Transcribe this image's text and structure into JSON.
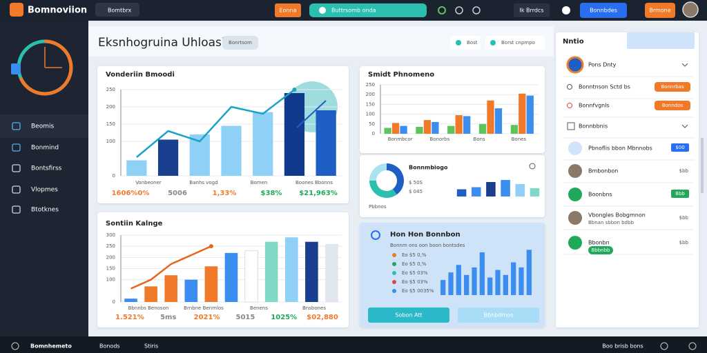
{
  "topbar": {
    "brand": "Bomnoviion",
    "search": "Bomtbrx",
    "button_1": "Eonna",
    "pill": "Buttrsomb onda",
    "link": "Ik Brrdcs",
    "button_2": "Bonnbdes",
    "button_3": "Brmone"
  },
  "sidebar": {
    "items": [
      "Beomis",
      "Bonmind",
      "Bontsfirss",
      "Vlopmes",
      "Btotknes"
    ]
  },
  "footer": {
    "items": [
      "Bomnhemeto",
      "Bonods",
      "Stiris"
    ],
    "right": "Boo brisb bons"
  },
  "header": {
    "title": "Eksnhogruina Uhloasi",
    "tag": "Bonrtsom",
    "button_1": "Bost",
    "button_2": "Borst cnpmpo"
  },
  "panels": [
    {
      "title": "Vonderiin Bmoodi",
      "ylim": [
        0,
        250
      ],
      "yticks": [
        0,
        100,
        150,
        200,
        250
      ],
      "bars": {
        "values": [
          45,
          105,
          120,
          145,
          185,
          240,
          190
        ],
        "colors": [
          "#8fd0f7",
          "#1a3f8f",
          "#8fd0f7",
          "#8fd0f7",
          "#8fd0f7",
          "#123a8c",
          "#1f5fc4"
        ]
      },
      "line": {
        "values": [
          54,
          130,
          100,
          200,
          180,
          250
        ],
        "color": "#1aa3c8"
      },
      "x_labels": [
        "Vonbeoner",
        "Banhs vogd",
        "Bomen",
        "Boones Bbonns"
      ],
      "stats": [
        "1606%0%",
        "5006",
        "1,33%",
        "$38%",
        "$21,963%"
      ]
    },
    {
      "title": "Smidt Phnomeno",
      "ylim": [
        0,
        250
      ],
      "yticks": [
        0,
        50,
        100,
        150,
        200,
        250
      ],
      "series": [
        {
          "color": "#5cc45a",
          "values": [
            30,
            35,
            40,
            50,
            45
          ]
        },
        {
          "color": "#f07a2a",
          "values": [
            55,
            70,
            95,
            170,
            205
          ]
        },
        {
          "color": "#3b8ef0",
          "values": [
            40,
            60,
            90,
            130,
            195
          ]
        }
      ],
      "x_labels": [
        "Bonmbcor",
        "Bonorbs",
        "Bons",
        "Bones"
      ]
    },
    {
      "title": "Bonnmbiogo",
      "donut": {
        "values": [
          40,
          35,
          25
        ],
        "colors": [
          "#1f5fc4",
          "#2bbfb0",
          "#a9e3f0"
        ]
      },
      "labels": [
        "$ 50S",
        "$ 045"
      ],
      "caption": "Pbbnos",
      "ylim": [
        0,
        100
      ],
      "bars": {
        "values": [
          35,
          45,
          70,
          80,
          60,
          40
        ],
        "colors": [
          "#1f5fc4",
          "#3b8ef0",
          "#1a3f8f",
          "#3b8ef0",
          "#8fd0f7",
          "#7fd8c8"
        ]
      }
    },
    {
      "title": "Sontiin Kalnge",
      "ylim": [
        0,
        300
      ],
      "yticks": [
        0,
        100,
        150,
        200,
        250,
        300
      ],
      "bars": {
        "values": [
          15,
          70,
          120,
          100,
          160,
          220,
          230,
          270,
          290,
          270,
          260
        ],
        "colors": [
          "#3b8ef0",
          "#f07a2a",
          "#f07a2a",
          "#3b8ef0",
          "#f07a2a",
          "#3b8ef0",
          "#fff",
          "#7fd8c8",
          "#8fd0f7",
          "#1a3f8f",
          "#dfe6ee"
        ]
      },
      "line": {
        "values": [
          60,
          100,
          170,
          210,
          250
        ],
        "color": "#e8641c"
      },
      "x_labels": [
        "Bbnnbs Benoson",
        "Brnbne Benmlos",
        "Benens",
        "Bnsbones"
      ],
      "stats": [
        "1.521%",
        "5ms",
        "2021%",
        "5015",
        "1025%",
        "$02,880"
      ]
    },
    {
      "title": "Hon Hon Bonnbon",
      "subtitle": "Bonnm ons oon boon bontsdes",
      "legend": [
        "Eo $5 0,%",
        "Eo $5 0,%",
        "Eo $5 03%",
        "Eo $5 03%",
        "Eo $5 0035%"
      ],
      "ylim": [
        0,
        100
      ],
      "bars": {
        "values": [
          30,
          45,
          60,
          40,
          55,
          85,
          35,
          50,
          40,
          65,
          55,
          90
        ],
        "colors": [
          "#3b8ef0"
        ]
      },
      "buttons": [
        "Sobon Att",
        "Bbnbdmos"
      ]
    }
  ],
  "right_panel": {
    "title": "Nntio",
    "items": [
      {
        "label": "Pons Dnty"
      },
      {
        "label": "Bonntnson Sctd bs",
        "button": "Bonnrbas"
      },
      {
        "label": "Bonnfvgnls",
        "button": "Bonndos"
      },
      {
        "label": "Bonnbbnis"
      },
      {
        "label": "Pbnoflis bbon Mbnnobs",
        "badge": "$00"
      },
      {
        "label": "Bmbonbon",
        "meta": "$bb"
      },
      {
        "label": "Boonbns",
        "badge": "Bbb"
      },
      {
        "label": "Vbongles Bobgmnon",
        "sub": "Bbnan sbbon bdbb",
        "meta": "$bb"
      },
      {
        "label": "Bbonbn",
        "badge": "Bbbnbb",
        "meta": "$bb"
      }
    ]
  }
}
